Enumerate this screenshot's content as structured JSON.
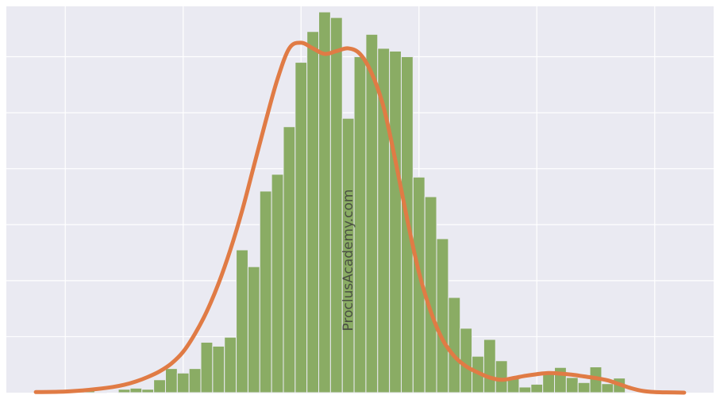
{
  "watermark": "ProclusAcademy.com",
  "colors": {
    "background": "#eaeaf2",
    "bar": "#8aac64",
    "kde": "#e07b45",
    "grid": "#ffffff"
  },
  "chart_data": {
    "type": "bar",
    "title": "",
    "xlabel": "",
    "ylabel": "",
    "grid": true,
    "xlim": [
      0,
      60
    ],
    "ylim": [
      0,
      69
    ],
    "x_gridlines": [
      5,
      15,
      25,
      35,
      45,
      55
    ],
    "y_gridlines": [
      10,
      20,
      30,
      40,
      50,
      60
    ],
    "bins": {
      "start": 2.5,
      "width": 1,
      "counts": [
        0,
        0,
        0,
        0,
        0.4,
        0.1,
        0,
        0.6,
        0.8,
        0.6,
        2.3,
        4.3,
        3.5,
        4.3,
        9,
        8.3,
        9.9,
        25.5,
        22.5,
        36,
        39,
        47.5,
        59,
        64.5,
        68,
        67,
        49,
        60,
        64,
        61.5,
        61,
        60,
        38.5,
        35,
        27.5,
        17,
        11.5,
        6.5,
        9.5,
        5.7,
        2.8,
        1,
        1.5,
        3.6,
        4.5,
        2.7,
        1.8,
        4.6,
        1.6,
        2.6,
        0,
        0,
        0,
        0,
        0
      ]
    },
    "kde": {
      "x": [
        2.5,
        5,
        7,
        9,
        10,
        11,
        12,
        13,
        14,
        15,
        16,
        17,
        18,
        19,
        20,
        21,
        22,
        23,
        24,
        25,
        26,
        27,
        28,
        29,
        30,
        31,
        32,
        33,
        34,
        35,
        36,
        37,
        38,
        39,
        40,
        41,
        42,
        43,
        44,
        45,
        46,
        47,
        48,
        49,
        50,
        51,
        52,
        53,
        54,
        55,
        56,
        57.5
      ],
      "y": [
        0.1,
        0.2,
        0.5,
        1,
        1.4,
        2,
        2.8,
        3.8,
        5.2,
        7.3,
        10.5,
        14.5,
        19.5,
        25.5,
        32.5,
        40.5,
        48.5,
        56,
        61.5,
        62.5,
        61.5,
        60.5,
        61,
        61.5,
        60.5,
        57,
        51,
        41.5,
        31,
        21.5,
        14.5,
        9.5,
        6.5,
        4.7,
        3.6,
        2.7,
        2.3,
        2.6,
        3,
        3.3,
        3.5,
        3.4,
        3.2,
        2.9,
        2.6,
        2.2,
        1.5,
        0.8,
        0.3,
        0.1,
        0.05,
        0
      ]
    }
  }
}
